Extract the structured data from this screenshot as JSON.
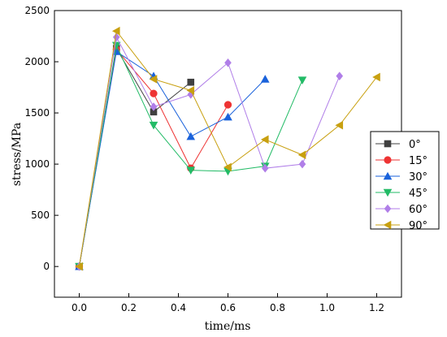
{
  "chart_data": {
    "type": "line",
    "xlabel": "time/ms",
    "ylabel": "stress/MPa",
    "xlim": [
      -0.1,
      1.3
    ],
    "ylim": [
      -300,
      2500
    ],
    "x_ticks": [
      {
        "value": 0.0,
        "label": "0.0"
      },
      {
        "value": 0.2,
        "label": "0.2"
      },
      {
        "value": 0.4,
        "label": "0.4"
      },
      {
        "value": 0.6,
        "label": "0.6"
      },
      {
        "value": 0.8,
        "label": "0.8"
      },
      {
        "value": 1.0,
        "label": "1.0"
      },
      {
        "value": 1.2,
        "label": "1.2"
      }
    ],
    "y_ticks": [
      {
        "value": 0,
        "label": "0"
      },
      {
        "value": 500,
        "label": "500"
      },
      {
        "value": 1000,
        "label": "1000"
      },
      {
        "value": 1500,
        "label": "1500"
      },
      {
        "value": 2000,
        "label": "2000"
      },
      {
        "value": 2500,
        "label": "2500"
      }
    ],
    "grid": false,
    "legend_position": "right",
    "series": [
      {
        "name": "0°",
        "color": "#404040",
        "marker": "square",
        "points": [
          [
            0,
            0
          ],
          [
            0.15,
            2130
          ],
          [
            0.3,
            1510
          ],
          [
            0.45,
            1800
          ]
        ]
      },
      {
        "name": "15°",
        "color": "#ee3333",
        "marker": "circle",
        "points": [
          [
            0,
            0
          ],
          [
            0.15,
            2120
          ],
          [
            0.3,
            1690
          ],
          [
            0.45,
            960
          ],
          [
            0.6,
            1580
          ]
        ]
      },
      {
        "name": "30°",
        "color": "#1a62db",
        "marker": "triangle-up",
        "points": [
          [
            0,
            0
          ],
          [
            0.15,
            2100
          ],
          [
            0.3,
            1860
          ],
          [
            0.45,
            1270
          ],
          [
            0.6,
            1460
          ],
          [
            0.75,
            1830
          ]
        ]
      },
      {
        "name": "45°",
        "color": "#22bb66",
        "marker": "triangle-down",
        "points": [
          [
            0,
            0
          ],
          [
            0.15,
            2160
          ],
          [
            0.3,
            1380
          ],
          [
            0.45,
            940
          ],
          [
            0.6,
            930
          ],
          [
            0.75,
            980
          ],
          [
            0.9,
            1820
          ]
        ]
      },
      {
        "name": "60°",
        "color": "#b07ee8",
        "marker": "diamond",
        "points": [
          [
            0,
            0
          ],
          [
            0.15,
            2240
          ],
          [
            0.3,
            1560
          ],
          [
            0.45,
            1680
          ],
          [
            0.6,
            1990
          ],
          [
            0.75,
            960
          ],
          [
            0.9,
            1000
          ],
          [
            1.05,
            1860
          ]
        ]
      },
      {
        "name": "90°",
        "color": "#c8a010",
        "marker": "triangle-left",
        "points": [
          [
            0,
            0
          ],
          [
            0.15,
            2300
          ],
          [
            0.3,
            1830
          ],
          [
            0.45,
            1720
          ],
          [
            0.6,
            970
          ],
          [
            0.75,
            1240
          ],
          [
            0.9,
            1090
          ],
          [
            1.05,
            1380
          ],
          [
            1.2,
            1850
          ]
        ]
      }
    ]
  }
}
